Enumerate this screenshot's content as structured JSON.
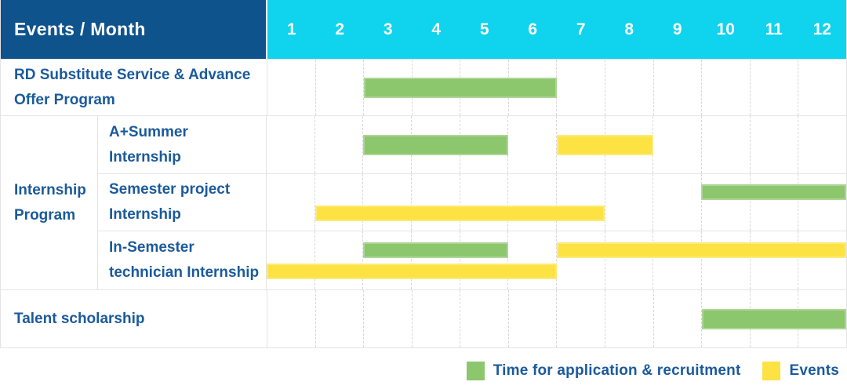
{
  "header": {
    "label": "Events / Month",
    "months": [
      "1",
      "2",
      "3",
      "4",
      "5",
      "6",
      "7",
      "8",
      "9",
      "10",
      "11",
      "12"
    ]
  },
  "colors": {
    "header_bg": "#0f538d",
    "months_bg": "#10d3ee",
    "text_blue": "#1b5a9b",
    "application": "#8cc66d",
    "event": "#fde244"
  },
  "legend": [
    {
      "key": "application",
      "label": "Time for application & recruitment"
    },
    {
      "key": "event",
      "label": "Events"
    }
  ],
  "chart_data": {
    "type": "bar",
    "subtype": "gantt-timeline",
    "title": "Events / Month",
    "x_categories": [
      1,
      2,
      3,
      4,
      5,
      6,
      7,
      8,
      9,
      10,
      11,
      12
    ],
    "xlabel": "Month",
    "x_range": [
      1,
      12
    ],
    "grid": "vertical-dashed",
    "legend_position": "bottom-right",
    "series_legend": [
      {
        "key": "application",
        "label": "Time for application & recruitment",
        "color": "#8cc66d"
      },
      {
        "key": "event",
        "label": "Events",
        "color": "#fde244"
      }
    ],
    "rows": [
      {
        "group": "",
        "label": "RD Substitute Service & Advance Offer Program",
        "lines": [
          [
            {
              "kind": "application",
              "start_month": 3,
              "end_month": 6
            }
          ]
        ]
      },
      {
        "group": "Internship Program",
        "label": "A+Summer Internship",
        "lines": [
          [
            {
              "kind": "application",
              "start_month": 3,
              "end_month": 5
            },
            {
              "kind": "event",
              "start_month": 7,
              "end_month": 8
            }
          ]
        ]
      },
      {
        "group": "Internship Program",
        "label": "Semester project Internship",
        "lines": [
          [
            {
              "kind": "application",
              "start_month": 10,
              "end_month": 12
            }
          ],
          [
            {
              "kind": "event",
              "start_month": 2,
              "end_month": 7
            }
          ]
        ]
      },
      {
        "group": "Internship Program",
        "label": "In-Semester technician Internship",
        "lines": [
          [
            {
              "kind": "application",
              "start_month": 3,
              "end_month": 5
            },
            {
              "kind": "event",
              "start_month": 7,
              "end_month": 12
            }
          ],
          [
            {
              "kind": "event",
              "start_month": 1,
              "end_month": 6
            }
          ]
        ]
      },
      {
        "group": "",
        "label": "Talent scholarship",
        "lines": [
          [
            {
              "kind": "application",
              "start_month": 10,
              "end_month": 12
            }
          ]
        ]
      }
    ]
  }
}
